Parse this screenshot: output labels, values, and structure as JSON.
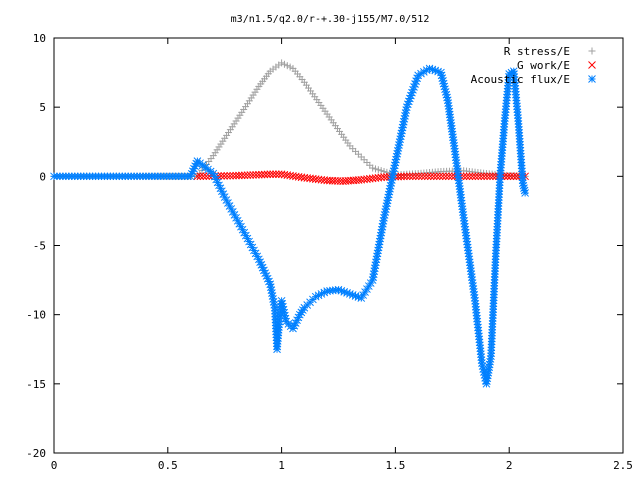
{
  "chart_data": {
    "type": "scatter",
    "title": "m3/n1.5/q2.0/r-+.30-j155/M7.0/512",
    "xlabel": "",
    "ylabel": "",
    "xlim": [
      0,
      2.5
    ],
    "ylim": [
      -20,
      10
    ],
    "x_ticks": [
      "0",
      "0.5",
      "1",
      "1.5",
      "2",
      "2.5"
    ],
    "y_ticks": [
      "10",
      "5",
      "0",
      "-5",
      "-10",
      "-15",
      "-20"
    ],
    "grid": false,
    "legend_position": "top-right",
    "series": [
      {
        "name": "R stress/E",
        "marker": "+",
        "color": "#a0a0a0",
        "points": [
          [
            0,
            0
          ],
          [
            0.3,
            0
          ],
          [
            0.63,
            0
          ],
          [
            0.7,
            1.5
          ],
          [
            0.8,
            4
          ],
          [
            0.9,
            6.5
          ],
          [
            0.95,
            7.6
          ],
          [
            1.0,
            8.2
          ],
          [
            1.05,
            7.8
          ],
          [
            1.1,
            6.8
          ],
          [
            1.2,
            4.5
          ],
          [
            1.3,
            2.2
          ],
          [
            1.4,
            0.6
          ],
          [
            1.5,
            0.1
          ],
          [
            1.6,
            0.2
          ],
          [
            1.7,
            0.35
          ],
          [
            1.8,
            0.4
          ],
          [
            1.9,
            0.2
          ],
          [
            2.0,
            0.05
          ],
          [
            2.07,
            0
          ]
        ]
      },
      {
        "name": "G work/E",
        "marker": "x",
        "color": "#ff0000",
        "points": [
          [
            0.63,
            0
          ],
          [
            0.8,
            0.05
          ],
          [
            0.95,
            0.15
          ],
          [
            1.0,
            0.15
          ],
          [
            1.1,
            -0.1
          ],
          [
            1.2,
            -0.3
          ],
          [
            1.27,
            -0.35
          ],
          [
            1.35,
            -0.25
          ],
          [
            1.45,
            -0.05
          ],
          [
            1.55,
            0
          ],
          [
            1.8,
            0
          ],
          [
            2.07,
            0
          ]
        ]
      },
      {
        "name": "Acoustic flux/E",
        "marker": "*",
        "color": "#0080ff",
        "points": [
          [
            0,
            0
          ],
          [
            0.3,
            0
          ],
          [
            0.6,
            0
          ],
          [
            0.63,
            1.1
          ],
          [
            0.7,
            0.2
          ],
          [
            0.75,
            -1.5
          ],
          [
            0.8,
            -3
          ],
          [
            0.85,
            -4.5
          ],
          [
            0.9,
            -6
          ],
          [
            0.95,
            -7.8
          ],
          [
            0.97,
            -9.5
          ],
          [
            0.98,
            -12.5
          ],
          [
            0.99,
            -10.5
          ],
          [
            1.0,
            -9
          ],
          [
            1.02,
            -10.5
          ],
          [
            1.05,
            -11
          ],
          [
            1.08,
            -10
          ],
          [
            1.1,
            -9.5
          ],
          [
            1.15,
            -8.7
          ],
          [
            1.2,
            -8.3
          ],
          [
            1.25,
            -8.2
          ],
          [
            1.3,
            -8.5
          ],
          [
            1.35,
            -8.8
          ],
          [
            1.4,
            -7.5
          ],
          [
            1.45,
            -3
          ],
          [
            1.5,
            1
          ],
          [
            1.55,
            5
          ],
          [
            1.6,
            7.3
          ],
          [
            1.65,
            7.8
          ],
          [
            1.7,
            7.5
          ],
          [
            1.73,
            5.5
          ],
          [
            1.76,
            2
          ],
          [
            1.8,
            -3
          ],
          [
            1.85,
            -9
          ],
          [
            1.88,
            -13.5
          ],
          [
            1.9,
            -15
          ],
          [
            1.92,
            -13
          ],
          [
            1.94,
            -6
          ],
          [
            1.96,
            0
          ],
          [
            1.98,
            4
          ],
          [
            2.0,
            7.4
          ],
          [
            2.02,
            7.6
          ],
          [
            2.04,
            4
          ],
          [
            2.06,
            -0.5
          ],
          [
            2.07,
            -1.2
          ]
        ]
      }
    ]
  }
}
